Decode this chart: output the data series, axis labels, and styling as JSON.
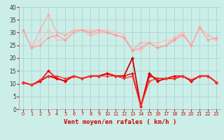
{
  "title": "",
  "xlabel": "Vent moyen/en rafales ( km/h )",
  "bg_color": "#cceee8",
  "grid_color": "#b0d8d4",
  "xlim": [
    -0.5,
    23.5
  ],
  "ylim": [
    0,
    40
  ],
  "yticks": [
    0,
    5,
    10,
    15,
    20,
    25,
    30,
    35,
    40
  ],
  "xticks": [
    0,
    1,
    2,
    3,
    4,
    5,
    6,
    7,
    8,
    9,
    10,
    11,
    12,
    13,
    14,
    15,
    16,
    17,
    18,
    19,
    20,
    21,
    22,
    23
  ],
  "series": [
    {
      "x": [
        0,
        1,
        2,
        3,
        4,
        5,
        6,
        7,
        8,
        9,
        10,
        11,
        12,
        13,
        14,
        15,
        16,
        17,
        18,
        19,
        20,
        21,
        22,
        23
      ],
      "y": [
        31,
        24,
        31,
        37,
        30,
        29,
        31,
        31,
        29,
        30,
        30,
        29,
        28,
        23,
        26,
        26,
        24,
        25,
        28,
        30,
        25,
        32,
        29,
        27
      ],
      "color": "#ffaaaa",
      "lw": 0.9,
      "marker": "D",
      "ms": 2.0
    },
    {
      "x": [
        0,
        1,
        2,
        3,
        4,
        5,
        6,
        7,
        8,
        9,
        10,
        11,
        12,
        13,
        14,
        15,
        16,
        17,
        18,
        19,
        20,
        21,
        22,
        23
      ],
      "y": [
        31,
        24,
        27,
        31,
        27,
        27,
        31,
        31,
        31,
        31,
        31,
        30,
        29,
        23,
        23,
        26,
        26,
        27,
        27,
        30,
        25,
        32,
        29,
        27
      ],
      "color": "#ffbbbb",
      "lw": 0.8,
      "marker": "D",
      "ms": 1.8
    },
    {
      "x": [
        0,
        1,
        2,
        3,
        4,
        5,
        6,
        7,
        8,
        9,
        10,
        11,
        12,
        13,
        14,
        15,
        16,
        17,
        18,
        19,
        20,
        21,
        22,
        23
      ],
      "y": [
        31,
        24,
        25,
        28,
        29,
        27,
        30,
        31,
        30,
        31,
        30,
        29,
        28,
        23,
        24,
        26,
        24,
        25,
        27,
        29,
        25,
        32,
        27,
        28
      ],
      "color": "#ff9999",
      "lw": 0.8,
      "marker": "D",
      "ms": 1.8
    },
    {
      "x": [
        0,
        1,
        2,
        3,
        4,
        5,
        6,
        7,
        8,
        9,
        10,
        11,
        12,
        13,
        14,
        15,
        16,
        17,
        18,
        19,
        20,
        21,
        22,
        23
      ],
      "y": [
        10.5,
        9.5,
        11,
        13,
        12,
        11,
        13,
        12,
        13,
        13,
        14,
        13,
        13,
        20,
        1,
        14,
        11,
        12,
        12,
        13,
        11,
        13,
        13,
        10.5
      ],
      "color": "#cc0000",
      "lw": 1.3,
      "marker": "D",
      "ms": 2.2
    },
    {
      "x": [
        0,
        1,
        2,
        3,
        4,
        5,
        6,
        7,
        8,
        9,
        10,
        11,
        12,
        13,
        14,
        15,
        16,
        17,
        18,
        19,
        20,
        21,
        22,
        23
      ],
      "y": [
        10.5,
        9.5,
        11,
        15,
        12,
        11,
        13,
        12,
        13,
        13,
        14,
        13,
        13,
        14,
        1,
        13,
        12,
        12,
        13,
        13,
        11,
        13,
        13,
        10.5
      ],
      "color": "#ee0000",
      "lw": 1.1,
      "marker": "D",
      "ms": 2.0
    },
    {
      "x": [
        0,
        1,
        2,
        3,
        4,
        5,
        6,
        7,
        8,
        9,
        10,
        11,
        12,
        13,
        14,
        15,
        16,
        17,
        18,
        19,
        20,
        21,
        22,
        23
      ],
      "y": [
        10.5,
        9.5,
        11.5,
        13,
        13,
        12,
        13,
        12,
        13,
        13,
        13,
        13,
        12,
        13,
        1,
        11,
        12,
        12,
        12,
        13,
        11.5,
        13,
        13,
        10.5
      ],
      "color": "#ff3333",
      "lw": 1.0,
      "marker": "D",
      "ms": 1.8
    }
  ]
}
